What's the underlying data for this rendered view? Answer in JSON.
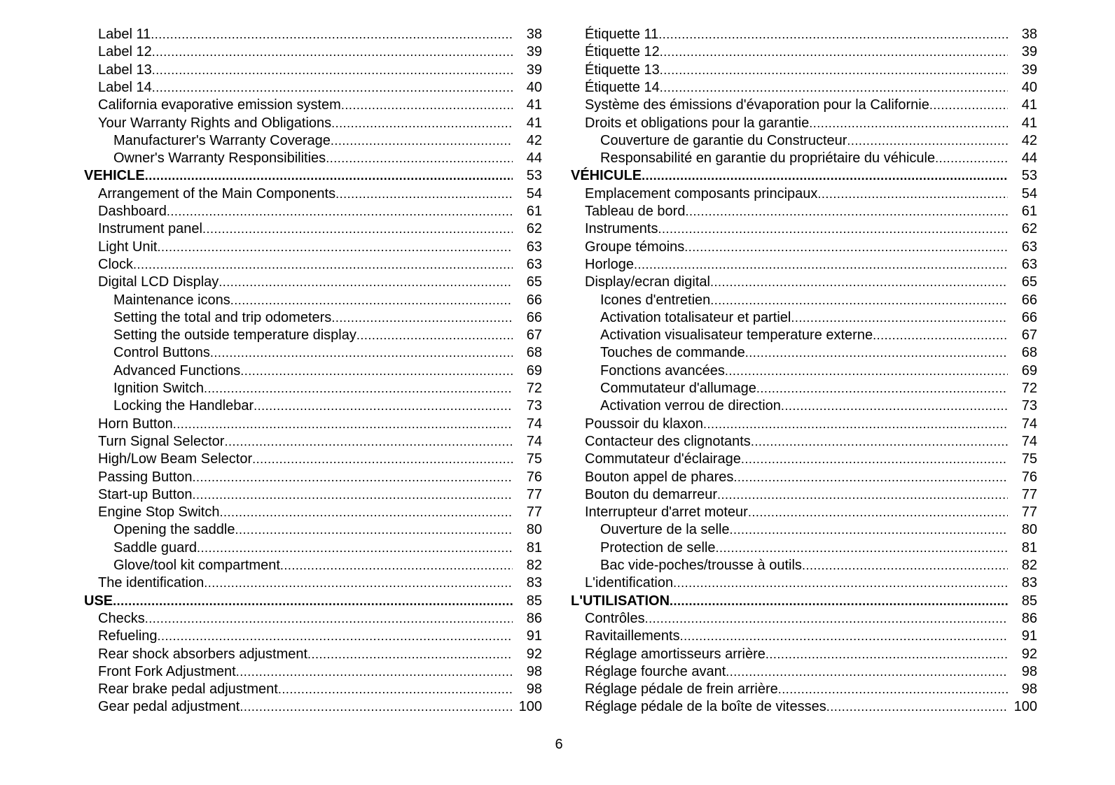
{
  "page_number": "6",
  "toc_en": [
    {
      "level": 1,
      "title": "Label 11",
      "page": "38"
    },
    {
      "level": 1,
      "title": "Label 12",
      "page": "39"
    },
    {
      "level": 1,
      "title": "Label 13",
      "page": "39"
    },
    {
      "level": 1,
      "title": "Label 14",
      "page": "40"
    },
    {
      "level": 1,
      "title": "California evaporative emission system",
      "page": "41"
    },
    {
      "level": 1,
      "title": "Your Warranty Rights and Obligations",
      "page": "41"
    },
    {
      "level": 2,
      "title": "Manufacturer's Warranty Coverage",
      "page": "42"
    },
    {
      "level": 2,
      "title": "Owner's Warranty Responsibilities",
      "page": "44"
    },
    {
      "level": 0,
      "title": "VEHICLE",
      "page": "53"
    },
    {
      "level": 1,
      "title": "Arrangement of the Main Components",
      "page": "54"
    },
    {
      "level": 1,
      "title": "Dashboard",
      "page": "61"
    },
    {
      "level": 1,
      "title": "Instrument panel",
      "page": "62"
    },
    {
      "level": 1,
      "title": "Light Unit",
      "page": "63"
    },
    {
      "level": 1,
      "title": "Clock",
      "page": "63"
    },
    {
      "level": 1,
      "title": "Digital LCD Display",
      "page": "65"
    },
    {
      "level": 2,
      "title": "Maintenance icons",
      "page": "66"
    },
    {
      "level": 2,
      "title": "Setting the total and trip odometers",
      "page": "66"
    },
    {
      "level": 2,
      "title": "Setting the outside temperature display",
      "page": "67"
    },
    {
      "level": 2,
      "title": "Control Buttons",
      "page": "68"
    },
    {
      "level": 2,
      "title": "Advanced Functions",
      "page": "69"
    },
    {
      "level": 2,
      "title": "Ignition Switch",
      "page": "72"
    },
    {
      "level": 2,
      "title": "Locking the Handlebar",
      "page": "73"
    },
    {
      "level": 1,
      "title": "Horn Button",
      "page": "74"
    },
    {
      "level": 1,
      "title": "Turn Signal Selector",
      "page": "74"
    },
    {
      "level": 1,
      "title": "High/Low Beam Selector",
      "page": "75"
    },
    {
      "level": 1,
      "title": "Passing Button",
      "page": "76"
    },
    {
      "level": 1,
      "title": "Start-up Button",
      "page": "77"
    },
    {
      "level": 1,
      "title": "Engine Stop Switch",
      "page": "77"
    },
    {
      "level": 2,
      "title": "Opening the saddle",
      "page": "80"
    },
    {
      "level": 2,
      "title": "Saddle guard",
      "page": "81"
    },
    {
      "level": 2,
      "title": "Glove/tool kit compartment",
      "page": "82"
    },
    {
      "level": 1,
      "title": "The identification",
      "page": "83"
    },
    {
      "level": 0,
      "title": "USE",
      "page": "85"
    },
    {
      "level": 1,
      "title": "Checks",
      "page": "86"
    },
    {
      "level": 1,
      "title": "Refueling",
      "page": "91"
    },
    {
      "level": 1,
      "title": "Rear shock absorbers adjustment",
      "page": "92"
    },
    {
      "level": 1,
      "title": "Front Fork Adjustment",
      "page": "98"
    },
    {
      "level": 1,
      "title": "Rear brake pedal adjustment",
      "page": "98"
    },
    {
      "level": 1,
      "title": "Gear pedal adjustment",
      "page": "100"
    }
  ],
  "toc_fr": [
    {
      "level": 1,
      "title": "Étiquette 11",
      "page": "38"
    },
    {
      "level": 1,
      "title": "Étiquette 12",
      "page": "39"
    },
    {
      "level": 1,
      "title": "Étiquette 13",
      "page": "39"
    },
    {
      "level": 1,
      "title": "Étiquette 14",
      "page": "40"
    },
    {
      "level": 1,
      "title": "Système des émissions d'évaporation pour la Californie",
      "page": "41"
    },
    {
      "level": 1,
      "title": "Droits et obligations pour la garantie",
      "page": "41"
    },
    {
      "level": 2,
      "title": "Couverture de garantie du Constructeur",
      "page": "42"
    },
    {
      "level": 2,
      "title": "Responsabilité en garantie du propriétaire du véhicule",
      "page": "44"
    },
    {
      "level": 0,
      "title": "VÉHICULE",
      "page": "53"
    },
    {
      "level": 1,
      "title": "Emplacement composants principaux",
      "page": "54"
    },
    {
      "level": 1,
      "title": "Tableau de bord",
      "page": "61"
    },
    {
      "level": 1,
      "title": "Instruments",
      "page": "62"
    },
    {
      "level": 1,
      "title": "Groupe témoins",
      "page": "63"
    },
    {
      "level": 1,
      "title": "Horloge",
      "page": "63"
    },
    {
      "level": 1,
      "title": "Display/ecran digital",
      "page": "65"
    },
    {
      "level": 2,
      "title": "Icones d'entretien",
      "page": "66"
    },
    {
      "level": 2,
      "title": "Activation totalisateur et partiel",
      "page": "66"
    },
    {
      "level": 2,
      "title": "Activation visualisateur temperature externe",
      "page": "67"
    },
    {
      "level": 2,
      "title": "Touches de commande",
      "page": "68"
    },
    {
      "level": 2,
      "title": "Fonctions avancées",
      "page": "69"
    },
    {
      "level": 2,
      "title": "Commutateur d'allumage",
      "page": "72"
    },
    {
      "level": 2,
      "title": "Activation verrou de direction",
      "page": "73"
    },
    {
      "level": 1,
      "title": "Poussoir du klaxon",
      "page": "74"
    },
    {
      "level": 1,
      "title": "Contacteur des clignotants",
      "page": "74"
    },
    {
      "level": 1,
      "title": "Commutateur d'éclairage",
      "page": "75"
    },
    {
      "level": 1,
      "title": "Bouton appel de phares",
      "page": "76"
    },
    {
      "level": 1,
      "title": "Bouton du demarreur",
      "page": "77"
    },
    {
      "level": 1,
      "title": "Interrupteur d'arret moteur",
      "page": "77"
    },
    {
      "level": 2,
      "title": "Ouverture de la selle",
      "page": "80"
    },
    {
      "level": 2,
      "title": "Protection de selle",
      "page": "81"
    },
    {
      "level": 2,
      "title": "Bac vide-poches/trousse à outils",
      "page": "82"
    },
    {
      "level": 1,
      "title": "L'identification",
      "page": "83"
    },
    {
      "level": 0,
      "title": "L'UTILISATION",
      "page": "85"
    },
    {
      "level": 1,
      "title": "Contrôles",
      "page": "86"
    },
    {
      "level": 1,
      "title": "Ravitaillements",
      "page": "91"
    },
    {
      "level": 1,
      "title": "Réglage amortisseurs arrière",
      "page": "92"
    },
    {
      "level": 1,
      "title": "Réglage fourche avant",
      "page": "98"
    },
    {
      "level": 1,
      "title": "Réglage pédale de frein arrière",
      "page": "98"
    },
    {
      "level": 1,
      "title": "Réglage pédale de la boîte de vitesses",
      "page": "100"
    }
  ]
}
